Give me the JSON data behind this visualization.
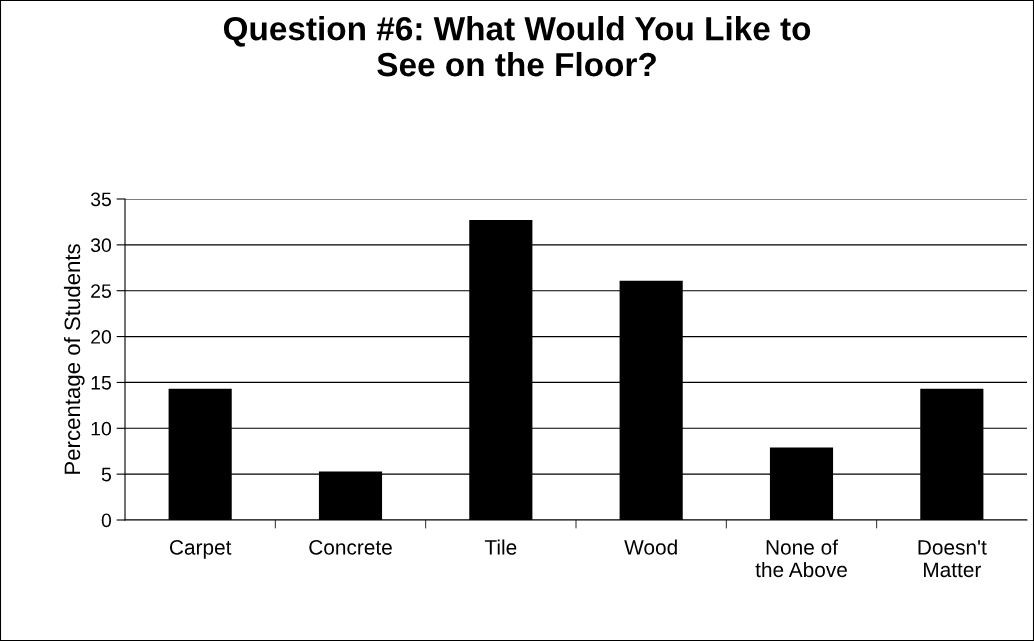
{
  "chart_data": {
    "type": "bar",
    "title": "Question #6: What Would You Like to\nSee on the Floor?",
    "ylabel": "Percentage of Students",
    "categories": [
      "Carpet",
      "Concrete",
      "Tile",
      "Wood",
      "None of\nthe Above",
      "Doesn't\nMatter"
    ],
    "values": [
      14.3,
      5.3,
      32.7,
      26.1,
      7.9,
      14.3
    ],
    "color": "#000000",
    "ylim": [
      0,
      35
    ],
    "yticks": [
      0,
      5,
      10,
      15,
      20,
      25,
      30,
      35
    ],
    "grid": "y",
    "legend": false
  }
}
